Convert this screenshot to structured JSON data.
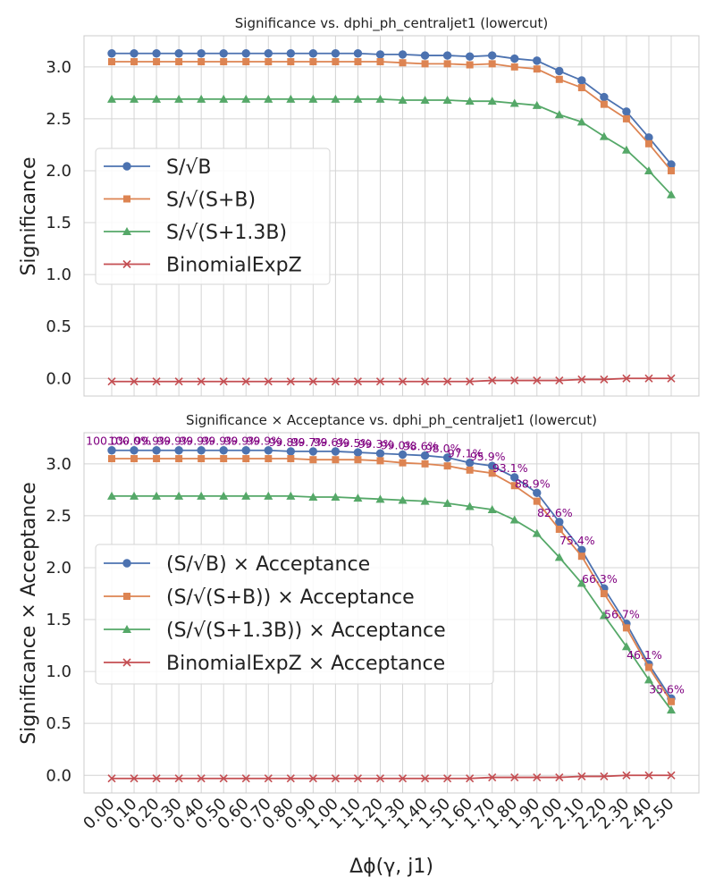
{
  "xlabel": "Δϕ(γ, j1)",
  "x_tick_labels": [
    "0.00",
    "0.10",
    "0.20",
    "0.30",
    "0.40",
    "0.50",
    "0.60",
    "0.70",
    "0.80",
    "0.90",
    "1.00",
    "1.10",
    "1.20",
    "1.30",
    "1.40",
    "1.50",
    "1.60",
    "1.70",
    "1.80",
    "1.90",
    "2.00",
    "2.10",
    "2.20",
    "2.30",
    "2.40",
    "2.50"
  ],
  "colors": {
    "blue": "#4c72b0",
    "orange": "#dd8452",
    "green": "#55a868",
    "red": "#c44e52",
    "annotation": "#800080",
    "grid": "#d4d4d4",
    "frame": "#cccccc"
  },
  "chart_data": [
    {
      "type": "line",
      "title": "Significance vs. dphi_ph_centraljet1 (lowercut)",
      "xlabel": "",
      "ylabel": "Significance",
      "ylim": [
        -0.17,
        3.3
      ],
      "y_ticks": [
        0.0,
        0.5,
        1.0,
        1.5,
        2.0,
        2.5,
        3.0
      ],
      "grid": true,
      "legend_placement": "center-left",
      "x": [
        0.0,
        0.1,
        0.2,
        0.3,
        0.4,
        0.5,
        0.6,
        0.7,
        0.8,
        0.9,
        1.0,
        1.1,
        1.2,
        1.3,
        1.4,
        1.5,
        1.6,
        1.7,
        1.8,
        1.9,
        2.0,
        2.1,
        2.2,
        2.3,
        2.4,
        2.5
      ],
      "series": [
        {
          "name": "S/√B",
          "color": "#4c72b0",
          "marker": "circle",
          "values": [
            3.13,
            3.13,
            3.13,
            3.13,
            3.13,
            3.13,
            3.13,
            3.13,
            3.13,
            3.13,
            3.13,
            3.13,
            3.12,
            3.12,
            3.11,
            3.11,
            3.1,
            3.11,
            3.08,
            3.06,
            2.96,
            2.87,
            2.71,
            2.57,
            2.32,
            2.06
          ]
        },
        {
          "name": "S/√(S+B)",
          "color": "#dd8452",
          "marker": "square",
          "values": [
            3.05,
            3.05,
            3.05,
            3.05,
            3.05,
            3.05,
            3.05,
            3.05,
            3.05,
            3.05,
            3.05,
            3.05,
            3.05,
            3.04,
            3.03,
            3.03,
            3.02,
            3.03,
            3.0,
            2.98,
            2.88,
            2.8,
            2.64,
            2.5,
            2.26,
            2.0
          ]
        },
        {
          "name": "S/√(S+1.3B)",
          "color": "#55a868",
          "marker": "triangle",
          "values": [
            2.69,
            2.69,
            2.69,
            2.69,
            2.69,
            2.69,
            2.69,
            2.69,
            2.69,
            2.69,
            2.69,
            2.69,
            2.69,
            2.68,
            2.68,
            2.68,
            2.67,
            2.67,
            2.65,
            2.63,
            2.54,
            2.47,
            2.33,
            2.2,
            2.0,
            1.77
          ]
        },
        {
          "name": "BinomialExpZ",
          "color": "#c44e52",
          "marker": "x",
          "values": [
            -0.03,
            -0.03,
            -0.03,
            -0.03,
            -0.03,
            -0.03,
            -0.03,
            -0.03,
            -0.03,
            -0.03,
            -0.03,
            -0.03,
            -0.03,
            -0.03,
            -0.03,
            -0.03,
            -0.03,
            -0.02,
            -0.02,
            -0.02,
            -0.02,
            -0.01,
            -0.01,
            0.0,
            0.0,
            0.0
          ]
        }
      ]
    },
    {
      "type": "line",
      "title": "Significance × Acceptance vs. dphi_ph_centraljet1 (lowercut)",
      "xlabel": "Δϕ(γ, j1)",
      "ylabel": "Significance × Acceptance",
      "ylim": [
        -0.17,
        3.3
      ],
      "y_ticks": [
        0.0,
        0.5,
        1.0,
        1.5,
        2.0,
        2.5,
        3.0
      ],
      "grid": true,
      "legend_placement": "center-left",
      "x": [
        0.0,
        0.1,
        0.2,
        0.3,
        0.4,
        0.5,
        0.6,
        0.7,
        0.8,
        0.9,
        1.0,
        1.1,
        1.2,
        1.3,
        1.4,
        1.5,
        1.6,
        1.7,
        1.8,
        1.9,
        2.0,
        2.1,
        2.2,
        2.3,
        2.4,
        2.5
      ],
      "series": [
        {
          "name": "(S/√B) × Acceptance",
          "color": "#4c72b0",
          "marker": "circle",
          "values": [
            3.13,
            3.13,
            3.13,
            3.13,
            3.13,
            3.13,
            3.13,
            3.13,
            3.12,
            3.12,
            3.12,
            3.11,
            3.1,
            3.09,
            3.08,
            3.06,
            3.01,
            2.98,
            2.87,
            2.72,
            2.44,
            2.17,
            1.8,
            1.46,
            1.07,
            0.74
          ]
        },
        {
          "name": "(S/√(S+B)) × Acceptance",
          "color": "#dd8452",
          "marker": "square",
          "values": [
            3.05,
            3.05,
            3.05,
            3.05,
            3.05,
            3.05,
            3.05,
            3.05,
            3.05,
            3.04,
            3.04,
            3.04,
            3.03,
            3.01,
            3.0,
            2.98,
            2.94,
            2.91,
            2.79,
            2.64,
            2.37,
            2.11,
            1.75,
            1.42,
            1.04,
            0.71
          ]
        },
        {
          "name": "(S/√(S+1.3B)) × Acceptance",
          "color": "#55a868",
          "marker": "triangle",
          "values": [
            2.69,
            2.69,
            2.69,
            2.69,
            2.69,
            2.69,
            2.69,
            2.69,
            2.69,
            2.68,
            2.68,
            2.67,
            2.66,
            2.65,
            2.64,
            2.62,
            2.59,
            2.56,
            2.46,
            2.33,
            2.1,
            1.85,
            1.54,
            1.24,
            0.92,
            0.63
          ]
        },
        {
          "name": "BinomialExpZ × Acceptance",
          "color": "#c44e52",
          "marker": "x",
          "values": [
            -0.03,
            -0.03,
            -0.03,
            -0.03,
            -0.03,
            -0.03,
            -0.03,
            -0.03,
            -0.03,
            -0.03,
            -0.03,
            -0.03,
            -0.03,
            -0.03,
            -0.03,
            -0.03,
            -0.03,
            -0.02,
            -0.02,
            -0.02,
            -0.02,
            -0.01,
            -0.01,
            0.0,
            0.0,
            0.0
          ]
        }
      ],
      "acceptance_labels": [
        "100.0%",
        "100.0%",
        "99.9%",
        "99.9%",
        "99.9%",
        "99.9%",
        "99.9%",
        "99.9%",
        "99.8%",
        "99.7%",
        "99.6%",
        "99.5%",
        "99.3%",
        "99.0%",
        "98.6%",
        "98.0%",
        "97.1%",
        "95.9%",
        "93.1%",
        "88.9%",
        "82.6%",
        "75.4%",
        "66.3%",
        "56.7%",
        "46.1%",
        "35.6%"
      ]
    }
  ]
}
